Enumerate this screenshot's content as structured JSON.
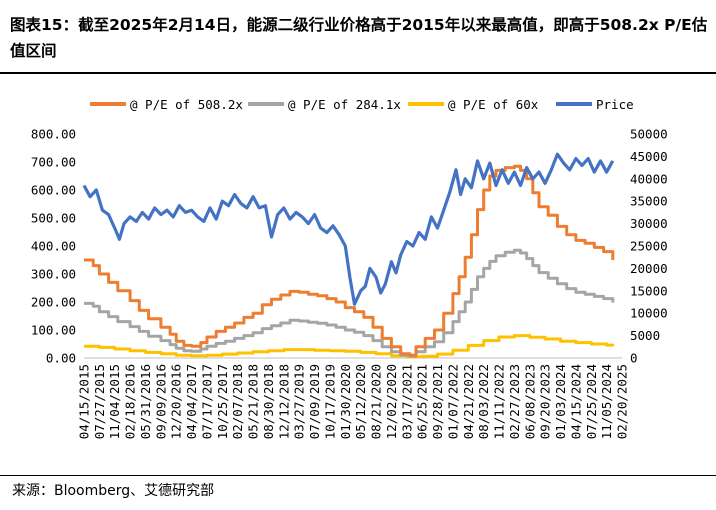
{
  "title": "图表15：截至2025年2月14日，能源二级行业价格高于2015年以来最高值，即高于508.2x P/E估值区间",
  "source": "来源：Bloomberg、艾德研究部",
  "colors": {
    "pe508": "#ED7D31",
    "pe284": "#A5A5A5",
    "pe60": "#FFC000",
    "price": "#4472C4"
  },
  "chart_data": {
    "type": "line",
    "series_meta": [
      {
        "key": "pe508",
        "name": "@ P/E of 508.2x",
        "axis": "left",
        "color": "#ED7D31"
      },
      {
        "key": "pe284",
        "name": "@ P/E of 284.1x",
        "axis": "left",
        "color": "#A5A5A5"
      },
      {
        "key": "pe60",
        "name": "@ P/E of 60x",
        "axis": "left",
        "color": "#FFC000"
      },
      {
        "key": "price",
        "name": "Price",
        "axis": "right",
        "color": "#4472C4"
      }
    ],
    "x_ticks": [
      "04/15/2015",
      "07/27/2015",
      "11/04/2015",
      "02/18/2016",
      "05/31/2016",
      "09/09/2016",
      "12/20/2016",
      "04/04/2017",
      "07/17/2017",
      "10/25/2017",
      "02/07/2018",
      "05/21/2018",
      "08/30/2018",
      "12/12/2018",
      "03/27/2019",
      "07/09/2019",
      "10/17/2019",
      "01/30/2020",
      "05/12/2020",
      "08/21/2020",
      "12/02/2020",
      "03/17/2021",
      "06/25/2021",
      "09/28/2021",
      "01/07/2022",
      "04/21/2022",
      "08/03/2022",
      "11/11/2022",
      "02/27/2023",
      "06/08/2023",
      "09/20/2023",
      "01/03/2024",
      "04/15/2024",
      "07/25/2024",
      "11/05/2024",
      "02/20/2025"
    ],
    "y_left_ticks": [
      "0.00",
      "100.00",
      "200.00",
      "300.00",
      "400.00",
      "500.00",
      "600.00",
      "700.00",
      "800.00"
    ],
    "y_right_ticks": [
      "0",
      "5000",
      "10000",
      "15000",
      "20000",
      "25000",
      "30000",
      "35000",
      "40000",
      "45000",
      "50000"
    ],
    "ylim_left": [
      0,
      800
    ],
    "ylim_right": [
      0,
      50000
    ],
    "series": {
      "pe508": [
        [
          0,
          350
        ],
        [
          0.6,
          330
        ],
        [
          1,
          300
        ],
        [
          1.6,
          270
        ],
        [
          2.2,
          240
        ],
        [
          3,
          205
        ],
        [
          3.6,
          170
        ],
        [
          4.2,
          140
        ],
        [
          5,
          110
        ],
        [
          5.6,
          85
        ],
        [
          6,
          60
        ],
        [
          6.5,
          45
        ],
        [
          7,
          42
        ],
        [
          7.6,
          55
        ],
        [
          8,
          75
        ],
        [
          8.6,
          95
        ],
        [
          9.2,
          110
        ],
        [
          9.8,
          125
        ],
        [
          10.4,
          145
        ],
        [
          11,
          160
        ],
        [
          11.6,
          190
        ],
        [
          12.2,
          210
        ],
        [
          12.8,
          225
        ],
        [
          13.4,
          238
        ],
        [
          14,
          235
        ],
        [
          14.6,
          228
        ],
        [
          15.2,
          222
        ],
        [
          15.8,
          212
        ],
        [
          16.4,
          200
        ],
        [
          17,
          180
        ],
        [
          17.6,
          165
        ],
        [
          18.2,
          145
        ],
        [
          18.8,
          110
        ],
        [
          19.4,
          70
        ],
        [
          20,
          40
        ],
        [
          20.6,
          15
        ],
        [
          21.2,
          10
        ],
        [
          21.6,
          40
        ],
        [
          22.2,
          70
        ],
        [
          22.8,
          100
        ],
        [
          23.4,
          160
        ],
        [
          24,
          230
        ],
        [
          24.4,
          290
        ],
        [
          24.8,
          360
        ],
        [
          25.2,
          440
        ],
        [
          25.6,
          530
        ],
        [
          26,
          600
        ],
        [
          26.4,
          650
        ],
        [
          26.8,
          670
        ],
        [
          27.4,
          680
        ],
        [
          28,
          685
        ],
        [
          28.4,
          670
        ],
        [
          28.8,
          640
        ],
        [
          29.2,
          590
        ],
        [
          29.6,
          540
        ],
        [
          30.2,
          510
        ],
        [
          30.8,
          470
        ],
        [
          31.4,
          440
        ],
        [
          32,
          420
        ],
        [
          32.6,
          410
        ],
        [
          33.2,
          395
        ],
        [
          33.8,
          380
        ],
        [
          34.4,
          350
        ]
      ],
      "pe284": [
        [
          0,
          195
        ],
        [
          0.6,
          185
        ],
        [
          1,
          165
        ],
        [
          1.6,
          148
        ],
        [
          2.2,
          130
        ],
        [
          3,
          112
        ],
        [
          3.6,
          95
        ],
        [
          4.2,
          78
        ],
        [
          5,
          62
        ],
        [
          5.6,
          48
        ],
        [
          6,
          35
        ],
        [
          6.5,
          26
        ],
        [
          7,
          24
        ],
        [
          7.6,
          32
        ],
        [
          8,
          42
        ],
        [
          8.6,
          52
        ],
        [
          9.2,
          60
        ],
        [
          9.8,
          70
        ],
        [
          10.4,
          80
        ],
        [
          11,
          90
        ],
        [
          11.6,
          105
        ],
        [
          12.2,
          115
        ],
        [
          12.8,
          125
        ],
        [
          13.4,
          135
        ],
        [
          14,
          132
        ],
        [
          14.6,
          128
        ],
        [
          15.2,
          124
        ],
        [
          15.8,
          118
        ],
        [
          16.4,
          110
        ],
        [
          17,
          100
        ],
        [
          17.6,
          92
        ],
        [
          18.2,
          80
        ],
        [
          18.8,
          62
        ],
        [
          19.4,
          40
        ],
        [
          20,
          22
        ],
        [
          20.6,
          10
        ],
        [
          21.2,
          6
        ],
        [
          21.6,
          22
        ],
        [
          22.2,
          40
        ],
        [
          22.8,
          58
        ],
        [
          23.4,
          90
        ],
        [
          24,
          130
        ],
        [
          24.4,
          165
        ],
        [
          24.8,
          200
        ],
        [
          25.2,
          245
        ],
        [
          25.6,
          290
        ],
        [
          26,
          320
        ],
        [
          26.4,
          345
        ],
        [
          26.8,
          365
        ],
        [
          27.4,
          378
        ],
        [
          28,
          385
        ],
        [
          28.4,
          375
        ],
        [
          28.8,
          355
        ],
        [
          29.2,
          330
        ],
        [
          29.6,
          305
        ],
        [
          30.2,
          285
        ],
        [
          30.8,
          265
        ],
        [
          31.4,
          248
        ],
        [
          32,
          235
        ],
        [
          32.6,
          228
        ],
        [
          33.2,
          220
        ],
        [
          33.8,
          212
        ],
        [
          34.4,
          198
        ]
      ],
      "pe60": [
        [
          0,
          42
        ],
        [
          1,
          38
        ],
        [
          2,
          32
        ],
        [
          3,
          26
        ],
        [
          4,
          20
        ],
        [
          5,
          15
        ],
        [
          6,
          10
        ],
        [
          7,
          8
        ],
        [
          8,
          10
        ],
        [
          9,
          14
        ],
        [
          10,
          18
        ],
        [
          11,
          22
        ],
        [
          12,
          26
        ],
        [
          13,
          30
        ],
        [
          14,
          30
        ],
        [
          15,
          28
        ],
        [
          16,
          26
        ],
        [
          17,
          24
        ],
        [
          18,
          20
        ],
        [
          19,
          15
        ],
        [
          20,
          8
        ],
        [
          21,
          4
        ],
        [
          22,
          6
        ],
        [
          23,
          14
        ],
        [
          24,
          28
        ],
        [
          25,
          45
        ],
        [
          26,
          62
        ],
        [
          27,
          75
        ],
        [
          28,
          80
        ],
        [
          29,
          74
        ],
        [
          30,
          68
        ],
        [
          31,
          60
        ],
        [
          32,
          55
        ],
        [
          33,
          50
        ],
        [
          34,
          46
        ],
        [
          34.4,
          42
        ]
      ],
      "price": [
        [
          0,
          38500
        ],
        [
          0.4,
          36000
        ],
        [
          0.8,
          37500
        ],
        [
          1.2,
          33000
        ],
        [
          1.6,
          32000
        ],
        [
          2,
          29000
        ],
        [
          2.3,
          26500
        ],
        [
          2.6,
          30000
        ],
        [
          3,
          31500
        ],
        [
          3.4,
          30500
        ],
        [
          3.8,
          32500
        ],
        [
          4.2,
          31000
        ],
        [
          4.6,
          33500
        ],
        [
          5,
          32000
        ],
        [
          5.4,
          33000
        ],
        [
          5.8,
          31500
        ],
        [
          6.2,
          34000
        ],
        [
          6.6,
          32500
        ],
        [
          7,
          33000
        ],
        [
          7.4,
          31500
        ],
        [
          7.8,
          30500
        ],
        [
          8.2,
          33500
        ],
        [
          8.6,
          31000
        ],
        [
          9,
          35000
        ],
        [
          9.4,
          34000
        ],
        [
          9.8,
          36500
        ],
        [
          10.2,
          34500
        ],
        [
          10.6,
          33500
        ],
        [
          11,
          36000
        ],
        [
          11.4,
          33500
        ],
        [
          11.8,
          34000
        ],
        [
          12.2,
          27000
        ],
        [
          12.6,
          32000
        ],
        [
          13,
          33500
        ],
        [
          13.4,
          31000
        ],
        [
          13.8,
          32500
        ],
        [
          14.2,
          31500
        ],
        [
          14.6,
          30000
        ],
        [
          15,
          32000
        ],
        [
          15.4,
          29000
        ],
        [
          15.8,
          28000
        ],
        [
          16.2,
          29500
        ],
        [
          16.6,
          27500
        ],
        [
          17,
          25000
        ],
        [
          17.3,
          18000
        ],
        [
          17.6,
          12000
        ],
        [
          18,
          15000
        ],
        [
          18.3,
          16000
        ],
        [
          18.6,
          20000
        ],
        [
          19,
          18000
        ],
        [
          19.3,
          14500
        ],
        [
          19.6,
          16500
        ],
        [
          20,
          21500
        ],
        [
          20.3,
          19000
        ],
        [
          20.6,
          23000
        ],
        [
          21,
          26000
        ],
        [
          21.4,
          25000
        ],
        [
          21.8,
          28000
        ],
        [
          22.2,
          26500
        ],
        [
          22.6,
          31500
        ],
        [
          23,
          29000
        ],
        [
          23.4,
          33000
        ],
        [
          23.8,
          37000
        ],
        [
          24.2,
          42000
        ],
        [
          24.5,
          36500
        ],
        [
          24.8,
          40000
        ],
        [
          25.2,
          38000
        ],
        [
          25.6,
          44000
        ],
        [
          26,
          40000
        ],
        [
          26.4,
          43500
        ],
        [
          26.8,
          38500
        ],
        [
          27.2,
          42000
        ],
        [
          27.6,
          39000
        ],
        [
          28,
          41500
        ],
        [
          28.4,
          38500
        ],
        [
          28.8,
          42500
        ],
        [
          29.2,
          40000
        ],
        [
          29.6,
          41500
        ],
        [
          30,
          39000
        ],
        [
          30.4,
          42000
        ],
        [
          30.8,
          45500
        ],
        [
          31.2,
          43500
        ],
        [
          31.6,
          42000
        ],
        [
          32,
          44500
        ],
        [
          32.4,
          43000
        ],
        [
          32.8,
          44500
        ],
        [
          33.2,
          41500
        ],
        [
          33.6,
          44000
        ],
        [
          34,
          41500
        ],
        [
          34.4,
          44000
        ]
      ]
    }
  }
}
